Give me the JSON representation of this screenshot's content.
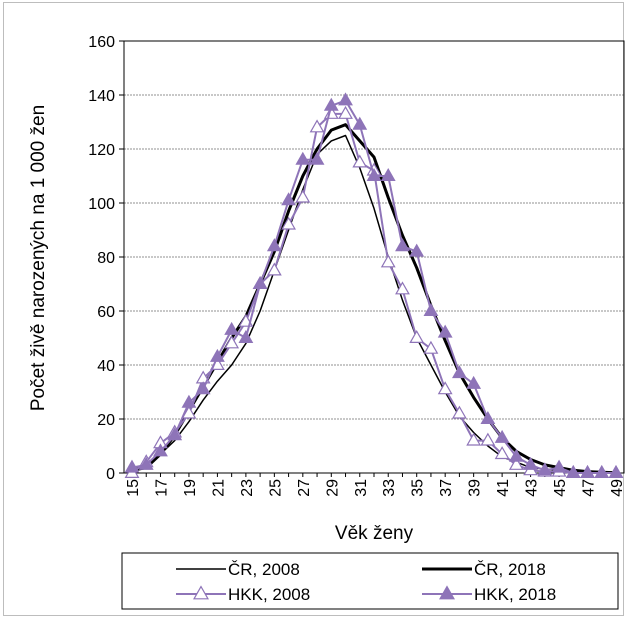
{
  "chart_data": {
    "type": "line",
    "xlabel": "Věk ženy",
    "ylabel": "Počet živě narozených na 1 000 žen",
    "ylim": [
      0,
      160
    ],
    "yticks": [
      "0",
      "20",
      "40",
      "60",
      "80",
      "100",
      "120",
      "140",
      "160"
    ],
    "xticks": [
      "15",
      "17",
      "19",
      "21",
      "23",
      "25",
      "27",
      "29",
      "31",
      "33",
      "35",
      "37",
      "39",
      "41",
      "43",
      "45",
      "47",
      "49"
    ],
    "x": [
      15,
      16,
      17,
      18,
      19,
      20,
      21,
      22,
      23,
      24,
      25,
      26,
      27,
      28,
      29,
      30,
      31,
      32,
      33,
      34,
      35,
      36,
      37,
      38,
      39,
      40,
      41,
      42,
      43,
      44,
      45,
      46,
      47,
      48,
      49
    ],
    "grid": true,
    "legend_position": "bottom",
    "series": [
      {
        "name": "ČR, 2008",
        "color": "#000000",
        "style": "thin-line",
        "values": [
          1,
          3,
          7,
          12,
          19,
          27,
          34,
          40,
          48,
          60,
          75,
          90,
          105,
          118,
          123,
          125,
          113,
          98,
          80,
          64,
          50,
          40,
          30,
          21,
          15,
          10,
          6,
          4,
          2,
          1.5,
          1,
          0.5,
          0.3,
          0.2,
          0.1
        ]
      },
      {
        "name": "ČR, 2018",
        "color": "#000000",
        "style": "thick-line",
        "values": [
          1,
          2,
          7,
          14,
          23,
          32,
          41,
          50,
          58,
          70,
          82,
          97,
          110,
          120,
          127,
          129,
          123,
          117,
          102,
          88,
          76,
          62,
          49,
          37,
          28,
          20,
          13,
          8,
          5,
          3,
          2,
          1,
          0.5,
          0.3,
          0.1
        ]
      },
      {
        "name": "HKK, 2008",
        "color": "#8e74b8",
        "style": "line-open-triangle",
        "values": [
          0,
          4,
          11,
          15,
          22,
          35,
          40,
          48,
          56,
          70,
          75,
          92,
          102,
          128,
          133,
          133,
          115,
          112,
          78,
          68,
          50,
          46,
          31,
          22,
          12,
          12,
          7,
          3,
          1,
          0.5,
          0.5,
          0,
          0,
          0,
          0
        ]
      },
      {
        "name": "HKK, 2018",
        "color": "#8e74b8",
        "style": "line-filled-triangle",
        "values": [
          2,
          3,
          8,
          14,
          26,
          31,
          43,
          53,
          50,
          70,
          84,
          101,
          116,
          116,
          136,
          138,
          129,
          110,
          110,
          84,
          82,
          60,
          52,
          37,
          33,
          20,
          13,
          6,
          3,
          1,
          2,
          0,
          0,
          0,
          0
        ]
      }
    ]
  }
}
